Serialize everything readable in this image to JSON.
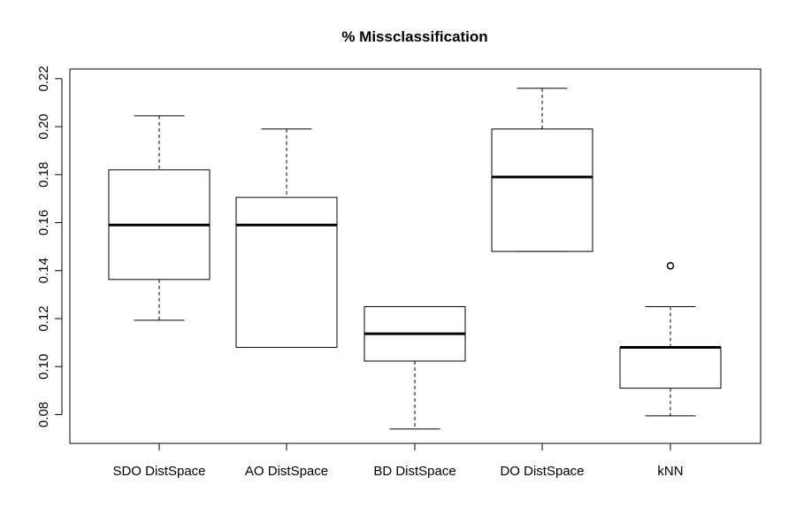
{
  "chart_data": {
    "type": "boxplot",
    "title": "% Missclassification",
    "xlabel": "",
    "ylabel": "",
    "ylim": [
      0.068,
      0.224
    ],
    "yticks": [
      "0.08",
      "0.10",
      "0.12",
      "0.14",
      "0.16",
      "0.18",
      "0.20",
      "0.22"
    ],
    "categories": [
      "SDO DistSpace",
      "AO DistSpace",
      "BD DistSpace",
      "DO DistSpace",
      "kNN"
    ],
    "boxes": [
      {
        "whisker_low": 0.1193,
        "q1": 0.1363,
        "median": 0.159,
        "q3": 0.182,
        "whisker_high": 0.2045,
        "outliers": []
      },
      {
        "whisker_low": 0.108,
        "q1": 0.108,
        "median": 0.159,
        "q3": 0.1705,
        "whisker_high": 0.199,
        "outliers": []
      },
      {
        "whisker_low": 0.074,
        "q1": 0.1023,
        "median": 0.1137,
        "q3": 0.125,
        "whisker_high": 0.125,
        "outliers": []
      },
      {
        "whisker_low": 0.148,
        "q1": 0.148,
        "median": 0.179,
        "q3": 0.199,
        "whisker_high": 0.216,
        "outliers": []
      },
      {
        "whisker_low": 0.0795,
        "q1": 0.091,
        "median": 0.108,
        "q3": 0.108,
        "whisker_high": 0.125,
        "outliers": [
          0.142
        ]
      }
    ],
    "grid": false,
    "legend": "none"
  }
}
